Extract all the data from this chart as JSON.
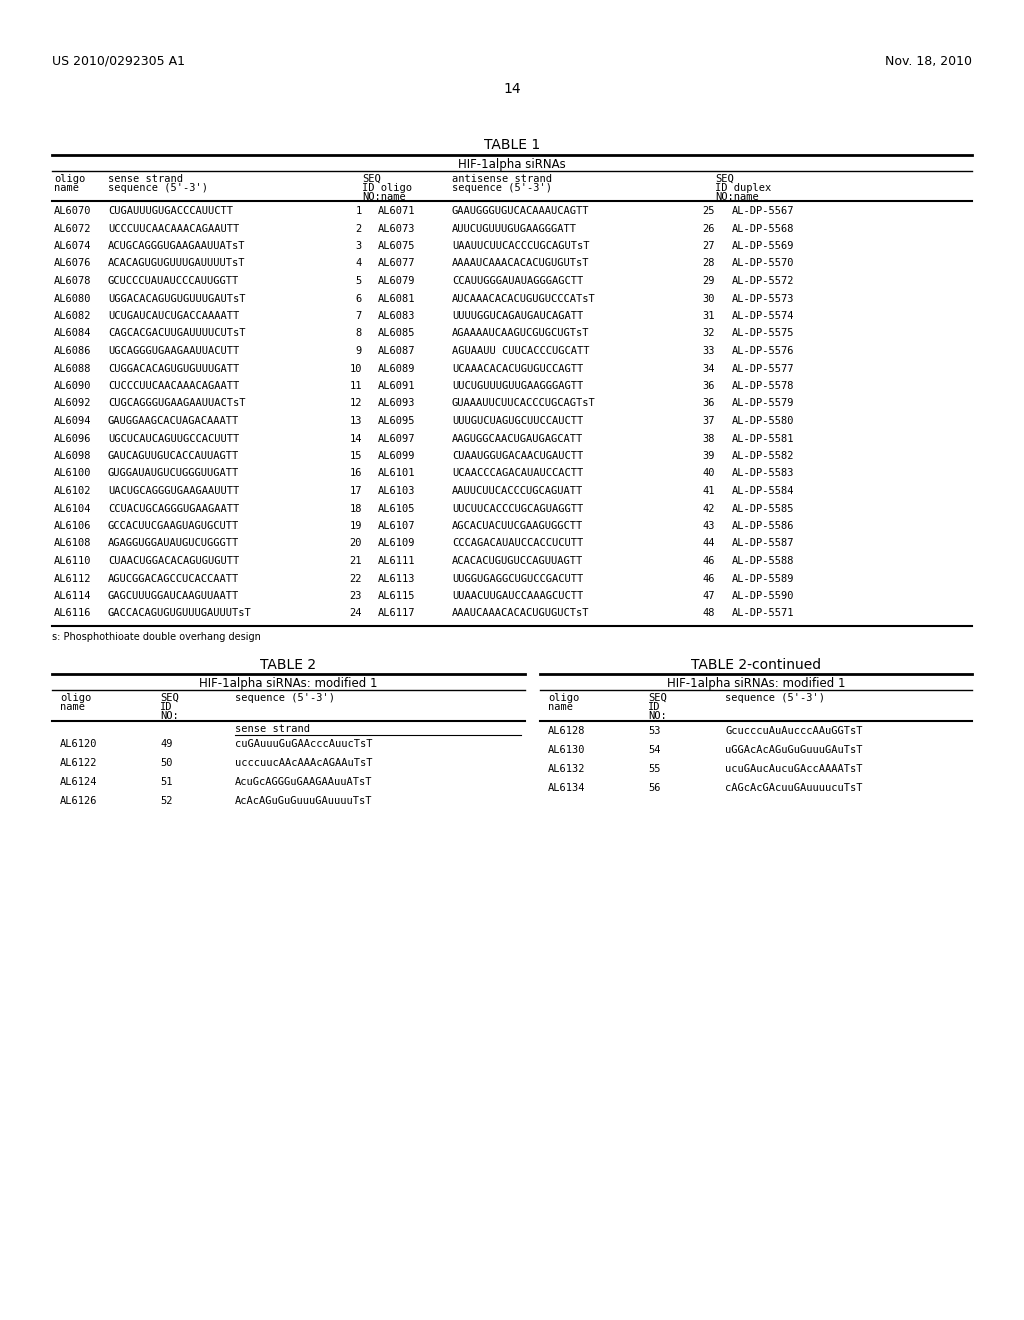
{
  "header_left": "US 2010/0292305 A1",
  "header_right": "Nov. 18, 2010",
  "page_number": "14",
  "table1_title": "TABLE 1",
  "table1_subtitle": "HIF-1alpha siRNAs",
  "table1_rows": [
    [
      "AL6070",
      "CUGAUUUGUGACCCAUUCTT",
      "1",
      "AL6071",
      "GAAUGGGUGUCACAAAUCAGTT",
      "25",
      "AL-DP-5567"
    ],
    [
      "AL6072",
      "UCCCUUCAACAAACAGAAUTT",
      "2",
      "AL6073",
      "AUUCUGUUUGUGAAGGGATT",
      "26",
      "AL-DP-5568"
    ],
    [
      "AL6074",
      "ACUGCAGGGUGAAGAAUUATsT",
      "3",
      "AL6075",
      "UAAUUCUUCACCCUGCAGUTsT",
      "27",
      "AL-DP-5569"
    ],
    [
      "AL6076",
      "ACACAGUGUGUUUGAUUUUTsT",
      "4",
      "AL6077",
      "AAAAUCAAACACACUGUGUTsT",
      "28",
      "AL-DP-5570"
    ],
    [
      "AL6078",
      "GCUCCCUAUAUCCCAUUGGTT",
      "5",
      "AL6079",
      "CCAUUGGGAUAUAGGGAGCTT",
      "29",
      "AL-DP-5572"
    ],
    [
      "AL6080",
      "UGGACACAGUGUGUUUGAUTsT",
      "6",
      "AL6081",
      "AUCAAACACACUGUGUCCCATsT",
      "30",
      "AL-DP-5573"
    ],
    [
      "AL6082",
      "UCUGAUCAUCUGACCAAAATT",
      "7",
      "AL6083",
      "UUUUGGUCAGAUGAUCAGATT",
      "31",
      "AL-DP-5574"
    ],
    [
      "AL6084",
      "CAGCACGACUUGAUUUUCUTsT",
      "8",
      "AL6085",
      "AGAAAAUCAAGUCGUGCUGTsT",
      "32",
      "AL-DP-5575"
    ],
    [
      "AL6086",
      "UGCAGGGUGAAGAAUUACUTT",
      "9",
      "AL6087",
      "AGUAAUU CUUCACCCUGCATT",
      "33",
      "AL-DP-5576"
    ],
    [
      "AL6088",
      "CUGGACACAGUGUGUUUGATT",
      "10",
      "AL6089",
      "UCAAACACACUGUGUCCAGTT",
      "34",
      "AL-DP-5577"
    ],
    [
      "AL6090",
      "CUCCCUUCAACAAACAGAATT",
      "11",
      "AL6091",
      "UUCUGUUUGUUGAAGGGAGTT",
      "36",
      "AL-DP-5578"
    ],
    [
      "AL6092",
      "CUGCAGGGUGAAGAAUUACTsT",
      "12",
      "AL6093",
      "GUAAAUUCUUCACCCUGCAGTsT",
      "36",
      "AL-DP-5579"
    ],
    [
      "AL6094",
      "GAUGGAAGCACUAGACAAATT",
      "13",
      "AL6095",
      "UUUGUCUAGUGCUUCCAUCTT",
      "37",
      "AL-DP-5580"
    ],
    [
      "AL6096",
      "UGCUCAUCAGUUGCCACUUTT",
      "14",
      "AL6097",
      "AAGUGGCAACUGAUGAGCATT",
      "38",
      "AL-DP-5581"
    ],
    [
      "AL6098",
      "GAUCAGUUGUCACCAUUAGTT",
      "15",
      "AL6099",
      "CUAAUGGUGACAACUGAUCTT",
      "39",
      "AL-DP-5582"
    ],
    [
      "AL6100",
      "GUGGAUAUGUCUGGGUUGATT",
      "16",
      "AL6101",
      "UCAACCCAGACAUAUCCACTT",
      "40",
      "AL-DP-5583"
    ],
    [
      "AL6102",
      "UACUGCAGGGUGAAGAAUUTT",
      "17",
      "AL6103",
      "AAUUCUUCACCCUGCAGUATT",
      "41",
      "AL-DP-5584"
    ],
    [
      "AL6104",
      "CCUACUGCAGGGUGAAGAATT",
      "18",
      "AL6105",
      "UUCUUCACCCUGCAGUAGGTT",
      "42",
      "AL-DP-5585"
    ],
    [
      "AL6106",
      "GCCACUUCGAAGUAGUGCUTT",
      "19",
      "AL6107",
      "AGCACUACUUCGAAGUGGCTT",
      "43",
      "AL-DP-5586"
    ],
    [
      "AL6108",
      "AGAGGUGGAUAUGUCUGGGTT",
      "20",
      "AL6109",
      "CCCAGACAUAUCCACCUCUTT",
      "44",
      "AL-DP-5587"
    ],
    [
      "AL6110",
      "CUAACUGGACACAGUGUGUTT",
      "21",
      "AL6111",
      "ACACACUGUGUCCAGUUAGTT",
      "46",
      "AL-DP-5588"
    ],
    [
      "AL6112",
      "AGUCGGACAGCCUCACCAATT",
      "22",
      "AL6113",
      "UUGGUGAGGCUGUCCGACUTT",
      "46",
      "AL-DP-5589"
    ],
    [
      "AL6114",
      "GAGCUUUGGAUCAAGUUAATT",
      "23",
      "AL6115",
      "UUAACUUGAUCCAAAGCUCTT",
      "47",
      "AL-DP-5590"
    ],
    [
      "AL6116",
      "GACCACAGUGUGUUUGAUUUTsT",
      "24",
      "AL6117",
      "AAAUCAAACACACUGUGUCTsT",
      "48",
      "AL-DP-5571"
    ]
  ],
  "table1_footnote": "s: Phosphothioate double overhang design",
  "table2_title": "TABLE 2",
  "table2_subtitle": "HIF-1alpha siRNAs: modified 1",
  "table2_rows": [
    [
      "AL6120",
      "49",
      "cuGAuuuGuGAAcccAuucTsT"
    ],
    [
      "AL6122",
      "50",
      "ucccuucAAcAAAcAGAAuTsT"
    ],
    [
      "AL6124",
      "51",
      "AcuGcAGGGuGAAGAAuuATsT"
    ],
    [
      "AL6126",
      "52",
      "AcAcAGuGuGuuuGAuuuuTsT"
    ]
  ],
  "table2cont_title": "TABLE 2-continued",
  "table2cont_subtitle": "HIF-1alpha siRNAs: modified 1",
  "table2cont_rows": [
    [
      "AL6128",
      "53",
      "GcucccuAuAucccAAuGGTsT"
    ],
    [
      "AL6130",
      "54",
      "uGGAcAcAGuGuGuuuGAuTsT"
    ],
    [
      "AL6132",
      "55",
      "ucuGAucAucuGAccAAAATsT"
    ],
    [
      "AL6134",
      "56",
      "cAGcAcGAcuuGAuuuucuTsT"
    ]
  ]
}
